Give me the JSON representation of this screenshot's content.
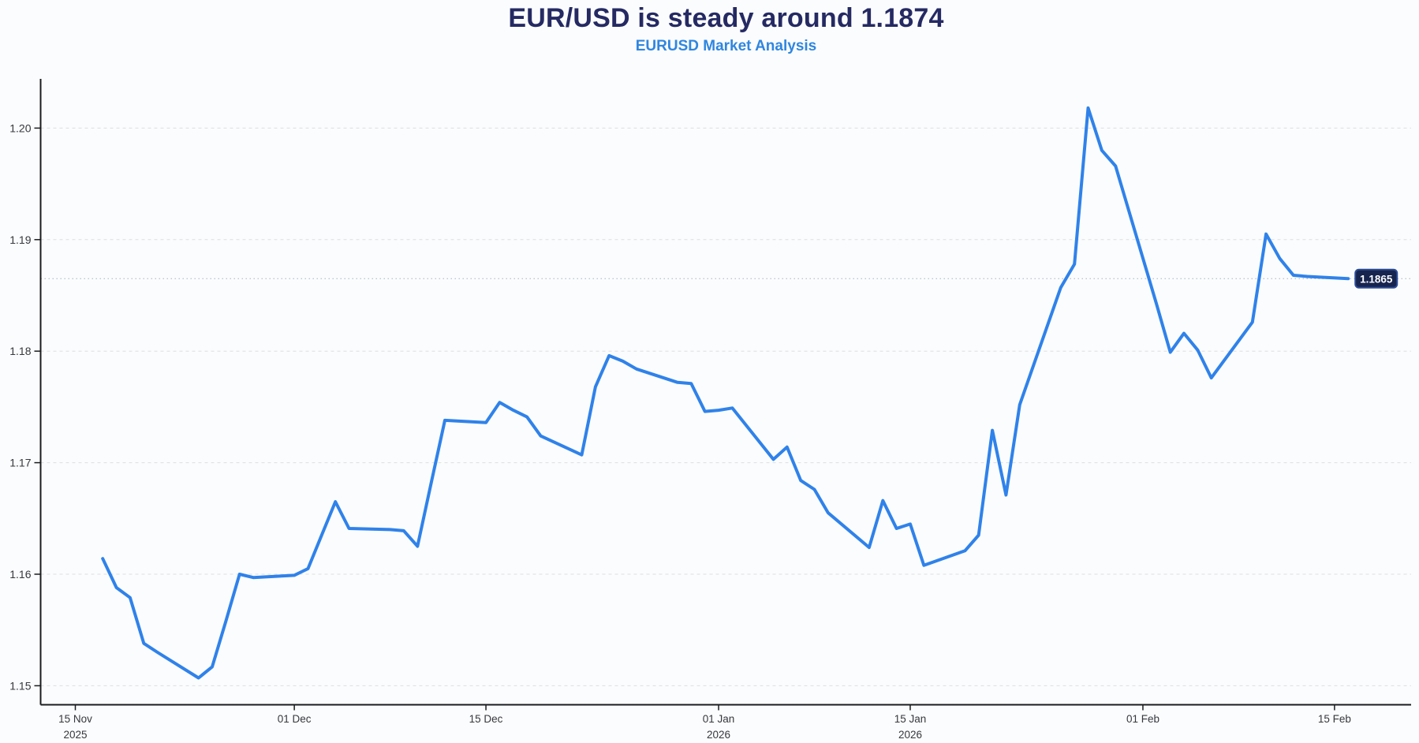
{
  "header": {
    "title": "EUR/USD is steady around 1.1874",
    "subtitle": "EURUSD Market Analysis"
  },
  "colors": {
    "background": "#fbfcfd",
    "line": "#2f82ea",
    "title_text": "#252a63",
    "subtitle_text": "#2f86e0",
    "axis": "#1a1b1e",
    "tick_label": "#35383d",
    "grid": "#dcdee2",
    "current_price_line": "#bfc5cf",
    "badge_bg": "#16244e",
    "badge_border": "#2c4c96",
    "badge_text": "#ffffff"
  },
  "chart_data": {
    "type": "line",
    "title": "EUR/USD is steady around 1.1874",
    "subtitle": "EURUSD Market Analysis",
    "series_name": "EURUSD",
    "legend_position": "none",
    "grid": "horizontal-dashed",
    "xlabel": "",
    "ylabel": "",
    "ylim": [
      1.1483,
      1.2044
    ],
    "y_ticks": [
      {
        "value": 1.2,
        "label": "1.20"
      },
      {
        "value": 1.19,
        "label": "1.19"
      },
      {
        "value": 1.18,
        "label": "1.18"
      },
      {
        "value": 1.17,
        "label": "1.17"
      },
      {
        "value": 1.16,
        "label": "1.16"
      },
      {
        "value": 1.15,
        "label": "1.15"
      }
    ],
    "x_ticks": [
      {
        "date": "2025-11-15",
        "lines": [
          "15 Nov",
          "2025"
        ]
      },
      {
        "date": "2025-12-01",
        "lines": [
          "01 Dec"
        ]
      },
      {
        "date": "2025-12-15",
        "lines": [
          "15 Dec"
        ]
      },
      {
        "date": "2026-01-01",
        "lines": [
          "01 Jan",
          "2026"
        ]
      },
      {
        "date": "2026-01-15",
        "lines": [
          "15 Jan",
          "2026"
        ]
      },
      {
        "date": "2026-02-01",
        "lines": [
          "01 Feb"
        ]
      },
      {
        "date": "2026-02-15",
        "lines": [
          "15 Feb"
        ]
      }
    ],
    "current_price": 1.1865,
    "current_price_label": "1.1865",
    "dates": [
      "2025-11-17",
      "2025-11-18",
      "2025-11-19",
      "2025-11-20",
      "2025-11-21",
      "2025-11-24",
      "2025-11-25",
      "2025-11-26",
      "2025-11-27",
      "2025-11-28",
      "2025-12-01",
      "2025-12-02",
      "2025-12-03",
      "2025-12-04",
      "2025-12-05",
      "2025-12-08",
      "2025-12-09",
      "2025-12-10",
      "2025-12-11",
      "2025-12-12",
      "2025-12-15",
      "2025-12-16",
      "2025-12-17",
      "2025-12-18",
      "2025-12-19",
      "2025-12-22",
      "2025-12-23",
      "2025-12-24",
      "2025-12-25",
      "2025-12-26",
      "2025-12-29",
      "2025-12-30",
      "2025-12-31",
      "2026-01-01",
      "2026-01-02",
      "2026-01-05",
      "2026-01-06",
      "2026-01-07",
      "2026-01-08",
      "2026-01-09",
      "2026-01-12",
      "2026-01-13",
      "2026-01-14",
      "2026-01-15",
      "2026-01-16",
      "2026-01-19",
      "2026-01-20",
      "2026-01-21",
      "2026-01-22",
      "2026-01-23",
      "2026-01-26",
      "2026-01-27",
      "2026-01-28",
      "2026-01-29",
      "2026-01-30",
      "2026-02-02",
      "2026-02-03",
      "2026-02-04",
      "2026-02-05",
      "2026-02-06",
      "2026-02-09",
      "2026-02-10",
      "2026-02-11",
      "2026-02-12",
      "2026-02-13",
      "2026-02-16"
    ],
    "values": [
      1.1614,
      1.1588,
      1.1579,
      1.1538,
      1.153,
      1.1507,
      1.1517,
      1.1558,
      1.16,
      1.1597,
      1.1599,
      1.1605,
      1.1635,
      1.1665,
      1.1641,
      1.164,
      1.1639,
      1.1625,
      1.1682,
      1.1738,
      1.1736,
      1.1754,
      1.1747,
      1.1741,
      1.1724,
      1.1707,
      1.1768,
      1.1796,
      1.1791,
      1.1784,
      1.1772,
      1.1771,
      1.1746,
      1.1747,
      1.1749,
      1.1703,
      1.1714,
      1.1684,
      1.1676,
      1.1655,
      1.1624,
      1.1666,
      1.1641,
      1.1645,
      1.1608,
      1.1621,
      1.1635,
      1.1729,
      1.1671,
      1.1752,
      1.1857,
      1.1878,
      1.2018,
      1.198,
      1.1966,
      1.1842,
      1.1799,
      1.1816,
      1.1801,
      1.1776,
      1.1826,
      1.1905,
      1.1883,
      1.1868,
      1.1867,
      1.1865
    ]
  }
}
